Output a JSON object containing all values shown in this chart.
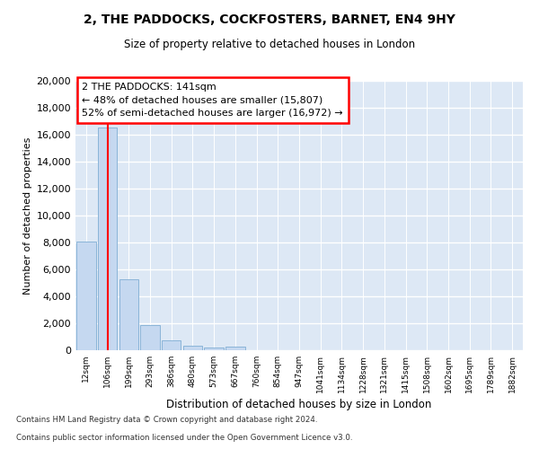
{
  "title1": "2, THE PADDOCKS, COCKFOSTERS, BARNET, EN4 9HY",
  "title2": "Size of property relative to detached houses in London",
  "xlabel": "Distribution of detached houses by size in London",
  "ylabel": "Number of detached properties",
  "categories": [
    "12sqm",
    "106sqm",
    "199sqm",
    "293sqm",
    "386sqm",
    "480sqm",
    "573sqm",
    "667sqm",
    "760sqm",
    "854sqm",
    "947sqm",
    "1041sqm",
    "1134sqm",
    "1228sqm",
    "1321sqm",
    "1415sqm",
    "1508sqm",
    "1602sqm",
    "1695sqm",
    "1789sqm",
    "1882sqm"
  ],
  "values": [
    8100,
    16550,
    5300,
    1850,
    750,
    330,
    230,
    280,
    0,
    0,
    0,
    0,
    0,
    0,
    0,
    0,
    0,
    0,
    0,
    0,
    0
  ],
  "bar_color": "#c5d8f0",
  "bar_edge_color": "#8ab4d8",
  "red_line_x": 1.0,
  "annotation_line1": "2 THE PADDOCKS: 141sqm",
  "annotation_line2": "← 48% of detached houses are smaller (15,807)",
  "annotation_line3": "52% of semi-detached houses are larger (16,972) →",
  "footer1": "Contains HM Land Registry data © Crown copyright and database right 2024.",
  "footer2": "Contains public sector information licensed under the Open Government Licence v3.0.",
  "plot_bg_color": "#dde8f5",
  "ylim": [
    0,
    20000
  ],
  "yticks": [
    0,
    2000,
    4000,
    6000,
    8000,
    10000,
    12000,
    14000,
    16000,
    18000,
    20000
  ]
}
